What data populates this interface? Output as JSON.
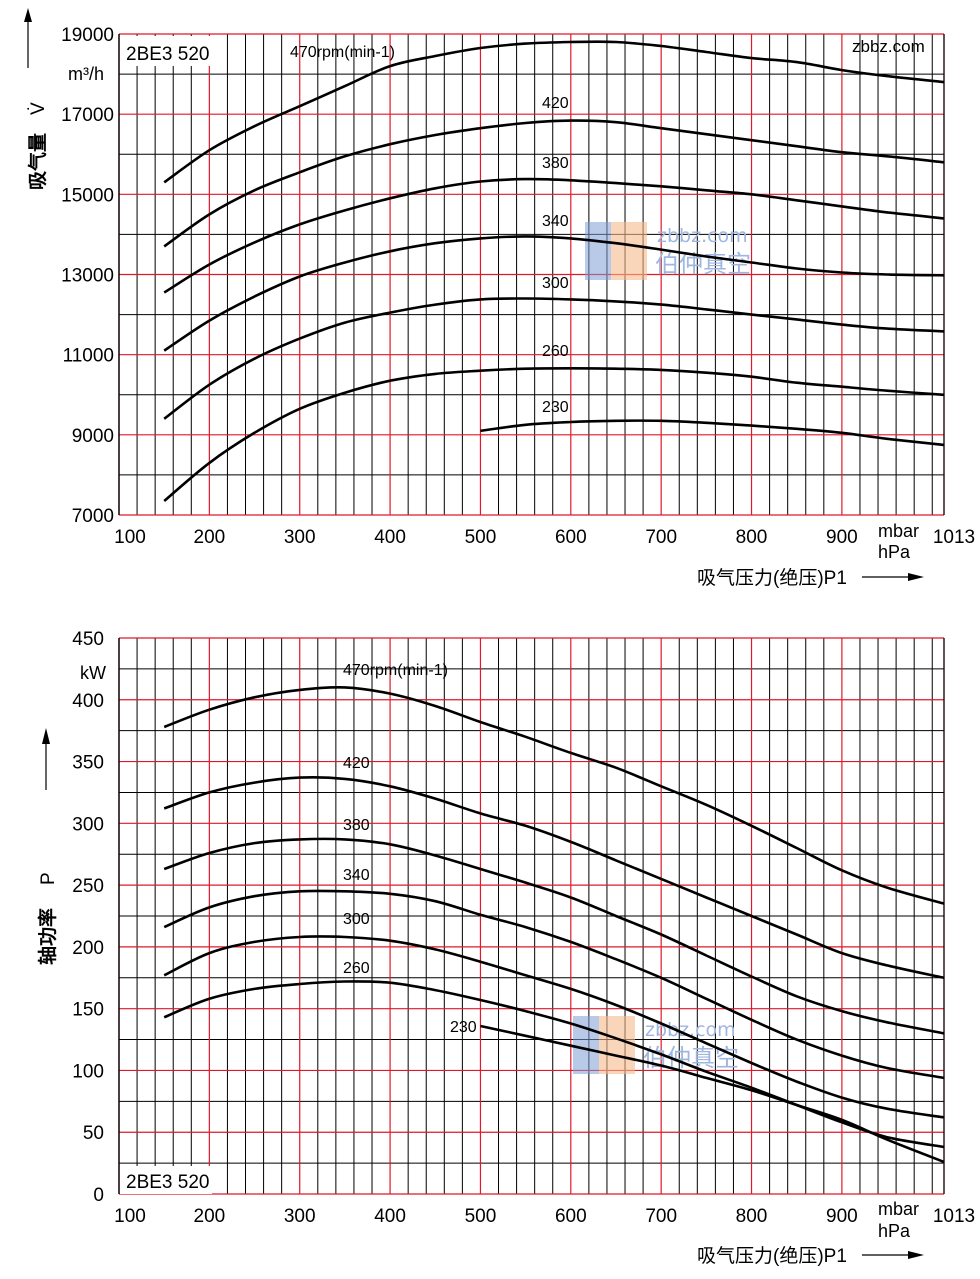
{
  "site_mark": "zbbz.com",
  "watermark": {
    "domain": "zbbz.com",
    "brand": "伯仲真空",
    "colors": {
      "blue": "#7d9ed6",
      "orange": "#f5b98a"
    }
  },
  "colors": {
    "major_grid": "#e0182a",
    "minor_grid": "#000000",
    "curve": "#000000",
    "site_mark": "#e0182a"
  },
  "chart_data": [
    {
      "type": "line",
      "model": "2BE3 520",
      "ylabel": "吸气量",
      "ylabel_symbol": "V̇",
      "unit": "m³/h",
      "xlabel": "吸气压力(绝压)P1",
      "x_units": [
        "mbar",
        "hPa"
      ],
      "xlim": [
        100,
        1013
      ],
      "ylim": [
        7000,
        19000
      ],
      "x_ticks": [
        100,
        200,
        300,
        400,
        500,
        600,
        700,
        800,
        900,
        1013
      ],
      "y_ticks": [
        7000,
        9000,
        11000,
        13000,
        15000,
        17000,
        19000
      ],
      "grid": true,
      "series": [
        {
          "name": "470rpm(min-1)",
          "x": [
            150,
            200,
            250,
            300,
            350,
            400,
            450,
            500,
            550,
            600,
            650,
            700,
            750,
            800,
            850,
            900,
            950,
            1013
          ],
          "values": [
            15300,
            16100,
            16700,
            17200,
            17700,
            18200,
            18450,
            18650,
            18760,
            18800,
            18800,
            18700,
            18550,
            18400,
            18300,
            18100,
            17950,
            17800
          ]
        },
        {
          "name": "420",
          "x": [
            150,
            200,
            250,
            300,
            350,
            400,
            450,
            500,
            550,
            600,
            650,
            700,
            750,
            800,
            850,
            900,
            950,
            1013
          ],
          "values": [
            13700,
            14500,
            15100,
            15550,
            15950,
            16250,
            16480,
            16650,
            16780,
            16840,
            16800,
            16650,
            16500,
            16350,
            16200,
            16050,
            15950,
            15800
          ]
        },
        {
          "name": "380",
          "x": [
            150,
            200,
            250,
            300,
            350,
            400,
            450,
            500,
            550,
            600,
            650,
            700,
            750,
            800,
            850,
            900,
            950,
            1013
          ],
          "values": [
            12550,
            13250,
            13800,
            14250,
            14600,
            14900,
            15150,
            15320,
            15380,
            15350,
            15280,
            15200,
            15100,
            15000,
            14850,
            14700,
            14550,
            14400
          ]
        },
        {
          "name": "340",
          "x": [
            150,
            200,
            250,
            300,
            350,
            400,
            450,
            500,
            550,
            600,
            650,
            700,
            750,
            800,
            850,
            900,
            950,
            1013
          ],
          "values": [
            11100,
            11850,
            12450,
            12950,
            13300,
            13580,
            13780,
            13900,
            13950,
            13900,
            13780,
            13620,
            13450,
            13300,
            13150,
            13050,
            13000,
            12980
          ]
        },
        {
          "name": "300",
          "x": [
            150,
            200,
            250,
            300,
            350,
            400,
            450,
            500,
            550,
            600,
            650,
            700,
            750,
            800,
            850,
            900,
            950,
            1013
          ],
          "values": [
            9400,
            10250,
            10900,
            11400,
            11800,
            12050,
            12250,
            12380,
            12400,
            12380,
            12330,
            12250,
            12130,
            12000,
            11880,
            11750,
            11650,
            11580
          ]
        },
        {
          "name": "260",
          "x": [
            150,
            200,
            250,
            300,
            350,
            400,
            450,
            500,
            550,
            600,
            650,
            700,
            750,
            800,
            850,
            900,
            950,
            1013
          ],
          "values": [
            7350,
            8300,
            9050,
            9650,
            10050,
            10350,
            10520,
            10600,
            10650,
            10660,
            10650,
            10620,
            10550,
            10450,
            10300,
            10200,
            10100,
            10000
          ]
        },
        {
          "name": "230",
          "x": [
            500,
            550,
            600,
            650,
            700,
            750,
            800,
            850,
            900,
            950,
            1013
          ],
          "values": [
            9100,
            9250,
            9320,
            9350,
            9350,
            9300,
            9230,
            9150,
            9050,
            8900,
            8750
          ]
        }
      ]
    },
    {
      "type": "line",
      "model": "2BE3 520",
      "ylabel": "轴功率",
      "ylabel_symbol": "P",
      "unit": "kW",
      "xlabel": "吸气压力(绝压)P1",
      "x_units": [
        "mbar",
        "hPa"
      ],
      "xlim": [
        100,
        1013
      ],
      "ylim": [
        0,
        450
      ],
      "x_ticks": [
        100,
        200,
        300,
        400,
        500,
        600,
        700,
        800,
        900,
        1013
      ],
      "y_ticks": [
        0,
        50,
        100,
        150,
        200,
        250,
        300,
        350,
        400,
        450
      ],
      "grid": true,
      "series": [
        {
          "name": "470rpm(min-1)",
          "x": [
            150,
            200,
            250,
            300,
            350,
            400,
            450,
            500,
            550,
            600,
            650,
            700,
            750,
            800,
            850,
            900,
            950,
            1013
          ],
          "values": [
            378,
            392,
            402,
            408,
            410,
            405,
            395,
            382,
            370,
            357,
            345,
            330,
            315,
            298,
            280,
            262,
            248,
            235
          ]
        },
        {
          "name": "420",
          "x": [
            150,
            200,
            250,
            300,
            350,
            400,
            450,
            500,
            550,
            600,
            650,
            700,
            750,
            800,
            850,
            900,
            950,
            1013
          ],
          "values": [
            312,
            325,
            333,
            337,
            336,
            330,
            320,
            308,
            298,
            285,
            270,
            255,
            240,
            225,
            210,
            195,
            185,
            175
          ]
        },
        {
          "name": "380",
          "x": [
            150,
            200,
            250,
            300,
            350,
            400,
            450,
            500,
            550,
            600,
            650,
            700,
            750,
            800,
            850,
            900,
            950,
            1013
          ],
          "values": [
            263,
            276,
            284,
            287,
            287,
            283,
            274,
            263,
            252,
            240,
            225,
            210,
            193,
            176,
            160,
            148,
            139,
            130
          ]
        },
        {
          "name": "340",
          "x": [
            150,
            200,
            250,
            300,
            350,
            400,
            450,
            500,
            550,
            600,
            650,
            700,
            750,
            800,
            850,
            900,
            950,
            1013
          ],
          "values": [
            216,
            232,
            241,
            245,
            245,
            243,
            237,
            226,
            216,
            204,
            190,
            175,
            158,
            141,
            125,
            112,
            102,
            94
          ]
        },
        {
          "name": "300",
          "x": [
            150,
            200,
            250,
            300,
            350,
            400,
            450,
            500,
            550,
            600,
            650,
            700,
            750,
            800,
            850,
            900,
            950,
            1013
          ],
          "values": [
            177,
            195,
            204,
            208,
            208,
            205,
            198,
            188,
            177,
            166,
            153,
            138,
            122,
            106,
            91,
            78,
            69,
            62
          ]
        },
        {
          "name": "260",
          "x": [
            150,
            200,
            250,
            300,
            350,
            400,
            450,
            500,
            550,
            600,
            650,
            700,
            750,
            800,
            850,
            900,
            950,
            1013
          ],
          "values": [
            143,
            158,
            166,
            170,
            172,
            171,
            165,
            157,
            148,
            138,
            126,
            113,
            99,
            86,
            72,
            58,
            46,
            38
          ]
        },
        {
          "name": "230",
          "x": [
            500,
            550,
            600,
            650,
            700,
            750,
            800,
            850,
            900,
            950,
            1013
          ],
          "values": [
            136,
            128,
            120,
            112,
            104,
            94,
            84,
            72,
            60,
            44,
            26
          ]
        }
      ]
    }
  ]
}
